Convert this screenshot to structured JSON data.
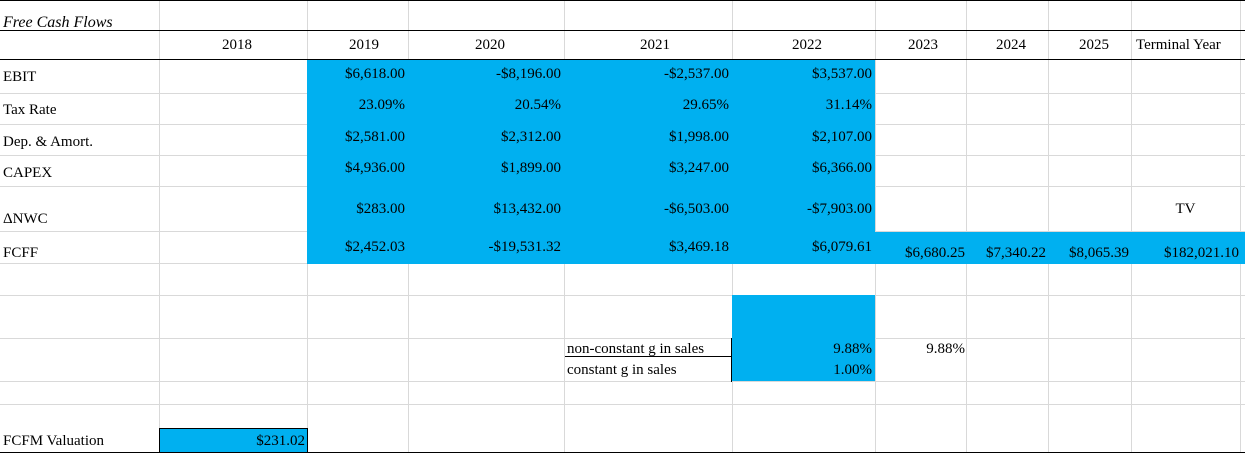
{
  "title": "Free Cash Flows",
  "years": [
    "2018",
    "2019",
    "2020",
    "2021",
    "2022",
    "2023",
    "2024",
    "2025",
    "Terminal Year"
  ],
  "rows": {
    "ebit": {
      "label": "EBIT",
      "values": [
        "",
        "$6,618.00",
        "-$8,196.00",
        "-$2,537.00",
        "$3,537.00"
      ]
    },
    "tax_rate": {
      "label": "Tax Rate",
      "values": [
        "",
        "23.09%",
        "20.54%",
        "29.65%",
        "31.14%"
      ]
    },
    "dep_amort": {
      "label": "Dep. & Amort.",
      "values": [
        "",
        "$2,581.00",
        "$2,312.00",
        "$1,998.00",
        "$2,107.00"
      ]
    },
    "capex": {
      "label": "CAPEX",
      "values": [
        "",
        "$4,936.00",
        "$1,899.00",
        "$3,247.00",
        "$6,366.00"
      ]
    },
    "nwc": {
      "label": "ΔNWC",
      "values": [
        "",
        "$283.00",
        "$13,432.00",
        "-$6,503.00",
        "-$7,903.00"
      ],
      "terminal_label": "TV"
    },
    "fcff": {
      "label": "FCFF",
      "values": [
        "",
        "$2,452.03",
        "-$19,531.32",
        "$3,469.18",
        "$6,079.61",
        "$6,680.25",
        "$7,340.22",
        "$8,065.39",
        "$182,021.10"
      ]
    }
  },
  "growth": {
    "non_constant_label": "non-constant g in sales",
    "non_constant_value": "9.88%",
    "non_constant_value_2023": "9.88%",
    "constant_label": "constant g in sales",
    "constant_value": "1.00%"
  },
  "valuation": {
    "label": "FCFM Valuation",
    "value": "$231.02"
  },
  "colors": {
    "highlight": "#00b0f0",
    "gridline": "#d9d9d9"
  }
}
